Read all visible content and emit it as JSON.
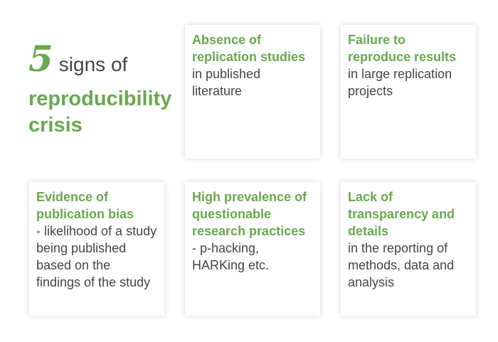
{
  "heading": {
    "number": "5",
    "text": "signs of",
    "subtitle_line1": "reproducibility",
    "subtitle_line2": "crisis"
  },
  "colors": {
    "accent": "#6aa84f",
    "text": "#444444",
    "card_background": "#ffffff"
  },
  "cards": [
    {
      "title": "Absence of replication studies",
      "body": "in published literature"
    },
    {
      "title": "Failure to reproduce results",
      "body": "in large replication projects"
    },
    {
      "title": "Evidence of publication bias",
      "body": "- likelihood of a study being published based on the findings of the study"
    },
    {
      "title": "High prevalence of questionable research practices",
      "body": "- p-hacking, HARKing etc."
    },
    {
      "title": "Lack of transparency and details",
      "body": "in the reporting of methods, data and analysis"
    }
  ]
}
